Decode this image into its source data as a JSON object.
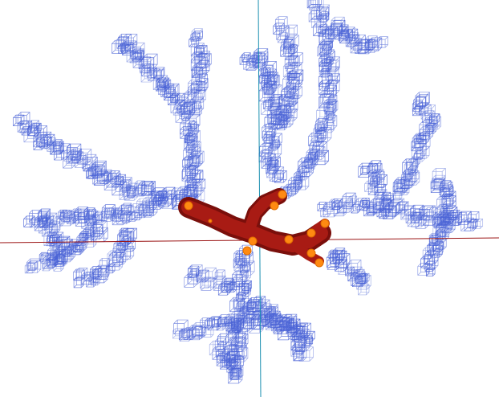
{
  "scene": {
    "background": "#ffffff",
    "colors": {
      "x_axis": "#9b1414",
      "y_axis": "#1a8fb0",
      "octree_cell": "#4a63d6",
      "trunk_fill": "#a81b14",
      "trunk_shadow": "#7a0f0b",
      "marker_fill": "#ff8a12",
      "marker_shade": "#e06d00"
    },
    "structure": {
      "branches": [
        {
          "name": "upper-left"
        },
        {
          "name": "top-center"
        },
        {
          "name": "upper-right"
        },
        {
          "name": "right"
        },
        {
          "name": "left"
        },
        {
          "name": "lower-center"
        }
      ],
      "marker_count": 11
    }
  }
}
